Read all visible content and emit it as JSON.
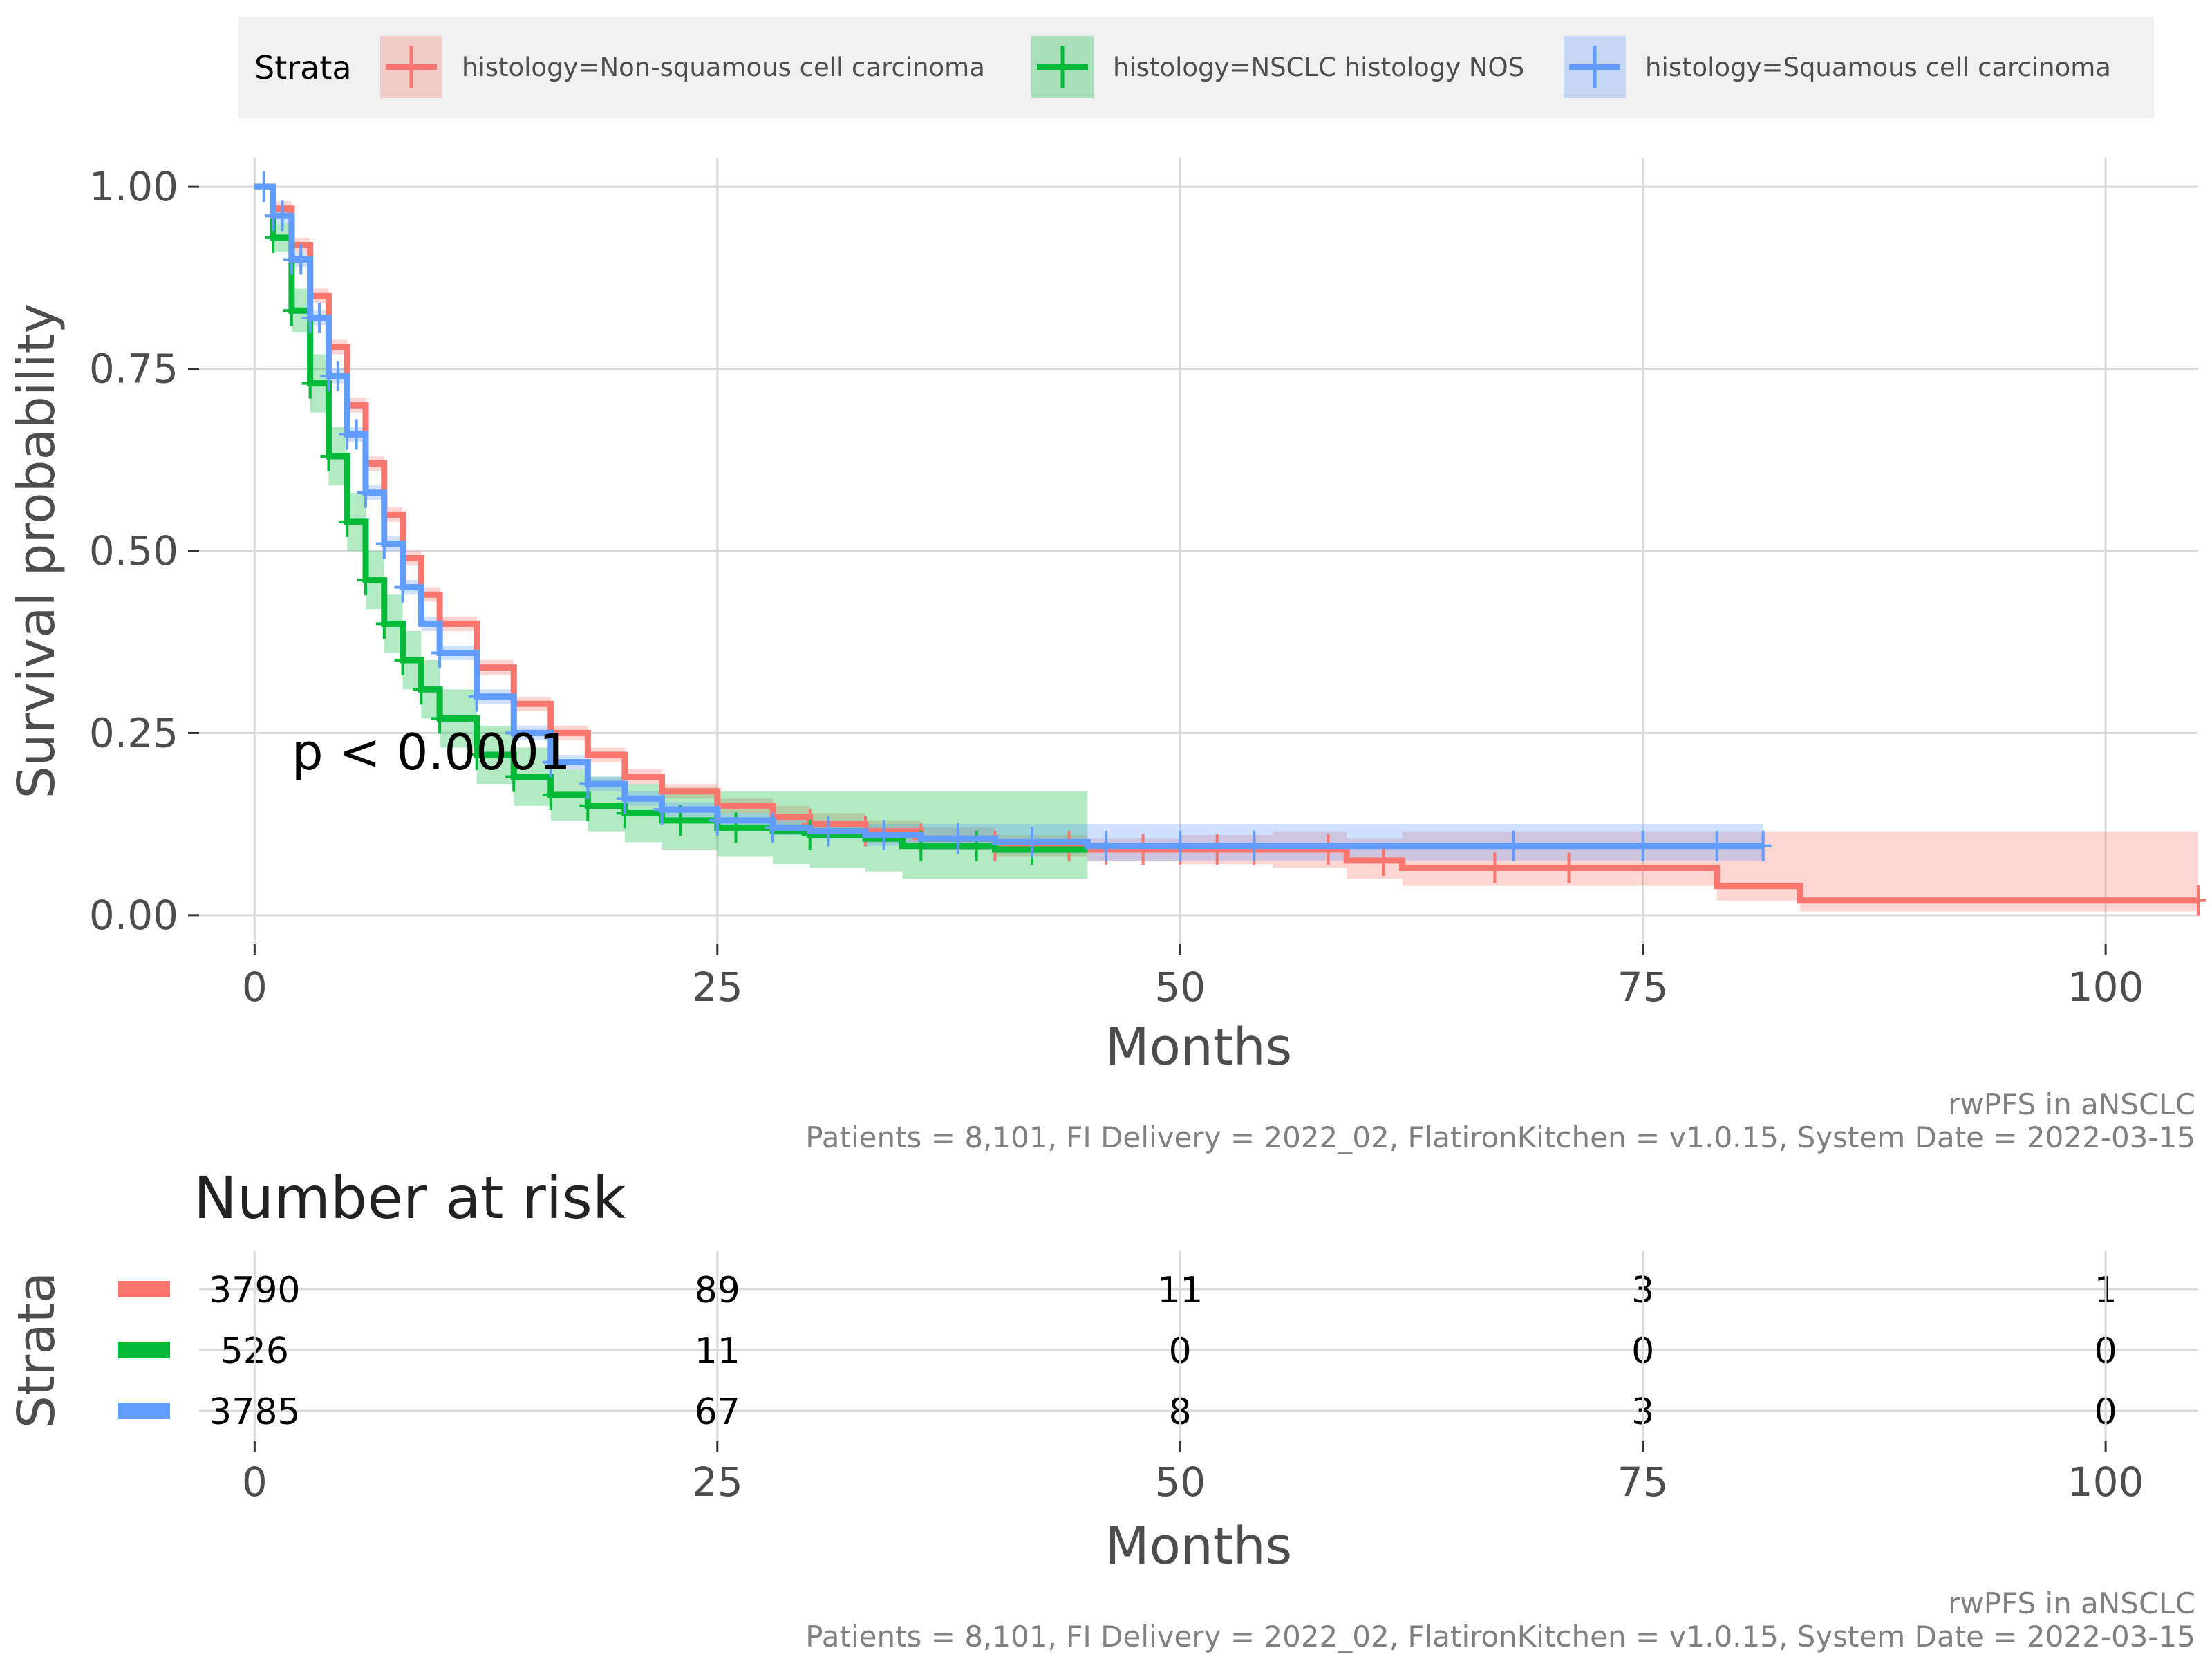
{
  "chart_data": [
    {
      "type": "line",
      "step": true,
      "legend": {
        "title": "Strata",
        "placement": "top",
        "entries": [
          "histology=Non-squamous cell carcinoma",
          "histology=NSCLC histology NOS",
          "histology=Squamous cell carcinoma"
        ]
      },
      "xlabel": "Months",
      "ylabel": "Survival probability",
      "xlim": [
        -3,
        105
      ],
      "ylim": [
        -0.04,
        1.04
      ],
      "x_ticks": [
        0,
        25,
        50,
        75,
        100
      ],
      "y_ticks": [
        0,
        0.25,
        0.5,
        0.75,
        1.0
      ],
      "y_tick_labels": [
        "0.00",
        "0.25",
        "0.50",
        "0.75",
        "1.00"
      ],
      "grid": true,
      "annotation": "p < 0.0001",
      "annotation_pos": {
        "x": 2,
        "y": 0.2
      },
      "caption": [
        "rwPFS in aNSCLC",
        "Patients = 8,101, FI Delivery = 2022_02, FlatironKitchen = v1.0.15, System Date = 2022-03-15"
      ],
      "series": [
        {
          "name": "histology=Non-squamous cell carcinoma",
          "color": "#F8766D",
          "x": [
            0,
            1,
            2,
            3,
            4,
            5,
            6,
            7,
            8,
            9,
            10,
            12,
            14,
            16,
            18,
            20,
            22,
            25,
            28,
            30,
            33,
            36,
            40,
            45,
            50,
            55,
            59,
            62,
            79,
            83.5,
            105
          ],
          "y": [
            1.0,
            0.97,
            0.92,
            0.85,
            0.78,
            0.7,
            0.62,
            0.55,
            0.49,
            0.44,
            0.4,
            0.34,
            0.29,
            0.25,
            0.22,
            0.19,
            0.17,
            0.15,
            0.135,
            0.125,
            0.115,
            0.105,
            0.095,
            0.09,
            0.09,
            0.09,
            0.075,
            0.065,
            0.04,
            0.02,
            0.02
          ],
          "lower": [
            1.0,
            0.96,
            0.91,
            0.84,
            0.77,
            0.69,
            0.61,
            0.54,
            0.48,
            0.43,
            0.39,
            0.33,
            0.28,
            0.24,
            0.21,
            0.18,
            0.16,
            0.14,
            0.12,
            0.11,
            0.1,
            0.09,
            0.08,
            0.075,
            0.07,
            0.065,
            0.05,
            0.04,
            0.02,
            0.005,
            0.005
          ],
          "upper": [
            1.0,
            0.98,
            0.93,
            0.86,
            0.79,
            0.71,
            0.63,
            0.56,
            0.5,
            0.45,
            0.41,
            0.35,
            0.3,
            0.26,
            0.23,
            0.2,
            0.18,
            0.16,
            0.15,
            0.14,
            0.13,
            0.12,
            0.11,
            0.105,
            0.11,
            0.115,
            0.105,
            0.115,
            0.115,
            0.115,
            0.115
          ],
          "censor_x": [
            30,
            33,
            36,
            38,
            40,
            42,
            44,
            46,
            48,
            50,
            52,
            54,
            58,
            61,
            67,
            71,
            105
          ]
        },
        {
          "name": "histology=NSCLC histology NOS",
          "color": "#00BA38",
          "x": [
            0,
            1,
            2,
            3,
            4,
            5,
            6,
            7,
            8,
            9,
            10,
            12,
            14,
            16,
            18,
            20,
            22,
            25,
            28,
            30,
            33,
            35,
            40,
            45
          ],
          "y": [
            1.0,
            0.93,
            0.83,
            0.73,
            0.63,
            0.54,
            0.46,
            0.4,
            0.35,
            0.31,
            0.27,
            0.22,
            0.19,
            0.165,
            0.15,
            0.14,
            0.13,
            0.12,
            0.115,
            0.11,
            0.105,
            0.095,
            0.09,
            0.09
          ],
          "lower": [
            1.0,
            0.91,
            0.8,
            0.69,
            0.59,
            0.5,
            0.42,
            0.36,
            0.31,
            0.27,
            0.23,
            0.18,
            0.15,
            0.13,
            0.115,
            0.1,
            0.09,
            0.08,
            0.07,
            0.065,
            0.06,
            0.05,
            0.05,
            0.05
          ],
          "upper": [
            1.0,
            0.95,
            0.86,
            0.77,
            0.67,
            0.58,
            0.5,
            0.44,
            0.39,
            0.35,
            0.31,
            0.26,
            0.23,
            0.2,
            0.19,
            0.18,
            0.175,
            0.17,
            0.17,
            0.17,
            0.17,
            0.17,
            0.17,
            0.17
          ],
          "censor_x": [
            1,
            2,
            3,
            4,
            5,
            6,
            7,
            8,
            9,
            10,
            12,
            14,
            16,
            18,
            20,
            23,
            26,
            30,
            36,
            39,
            42
          ]
        },
        {
          "name": "histology=Squamous cell carcinoma",
          "color": "#619CFF",
          "x": [
            0,
            1,
            2,
            3,
            4,
            5,
            6,
            7,
            8,
            9,
            10,
            12,
            14,
            16,
            18,
            20,
            22,
            25,
            28,
            30,
            33,
            36,
            40,
            45,
            81.5
          ],
          "y": [
            1.0,
            0.96,
            0.9,
            0.82,
            0.74,
            0.66,
            0.58,
            0.51,
            0.45,
            0.4,
            0.36,
            0.3,
            0.25,
            0.21,
            0.18,
            0.16,
            0.145,
            0.13,
            0.12,
            0.115,
            0.11,
            0.105,
            0.1,
            0.095,
            0.095
          ],
          "lower": [
            1.0,
            0.95,
            0.89,
            0.81,
            0.73,
            0.65,
            0.57,
            0.5,
            0.44,
            0.39,
            0.35,
            0.29,
            0.24,
            0.2,
            0.17,
            0.15,
            0.135,
            0.12,
            0.11,
            0.105,
            0.095,
            0.09,
            0.085,
            0.075,
            0.075
          ],
          "upper": [
            1.0,
            0.97,
            0.91,
            0.83,
            0.75,
            0.67,
            0.59,
            0.52,
            0.46,
            0.41,
            0.37,
            0.31,
            0.26,
            0.22,
            0.19,
            0.17,
            0.155,
            0.14,
            0.13,
            0.125,
            0.125,
            0.125,
            0.125,
            0.125,
            0.125
          ],
          "censor_x": [
            0.5,
            1,
            1.5,
            2,
            2.5,
            3,
            3.5,
            4,
            4.5,
            5,
            5.5,
            6,
            7,
            8,
            10,
            12,
            14,
            16,
            18,
            20,
            22,
            25,
            28,
            31,
            34,
            38,
            42,
            46,
            50,
            54,
            68,
            75,
            79,
            81.5
          ]
        }
      ]
    },
    {
      "type": "table",
      "title": "Number at risk",
      "ylabel": "Strata",
      "xlabel": "Months",
      "x_ticks": [
        0,
        25,
        50,
        75,
        100
      ],
      "rows": [
        {
          "color": "#F8766D",
          "values": [
            "3790",
            "89",
            "11",
            "3",
            "1"
          ]
        },
        {
          "color": "#00BA38",
          "values": [
            "526",
            "11",
            "0",
            "0",
            "0"
          ]
        },
        {
          "color": "#619CFF",
          "values": [
            "3785",
            "67",
            "8",
            "3",
            "0"
          ]
        }
      ],
      "caption": [
        "rwPFS in aNSCLC",
        "Patients = 8,101, FI Delivery = 2022_02, FlatironKitchen = v1.0.15, System Date = 2022-03-15"
      ]
    }
  ]
}
